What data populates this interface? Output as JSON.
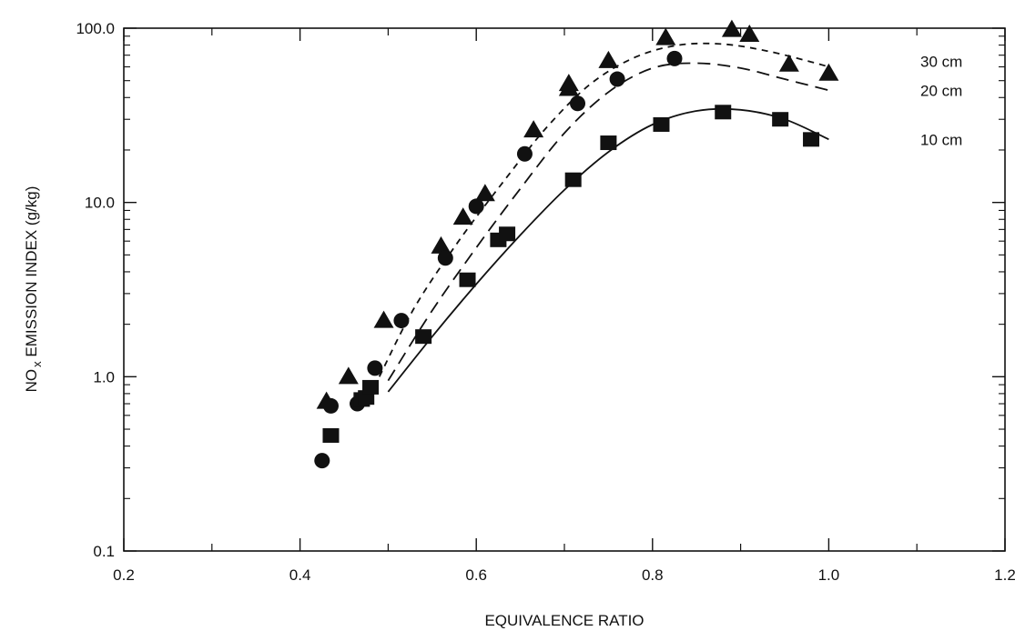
{
  "chart_data": {
    "type": "scatter",
    "xlabel": "EQUIVALENCE RATIO",
    "ylabel_prefix": "NO",
    "ylabel_sub": "x",
    "ylabel_suffix": " EMISSION INDEX (g/kg)",
    "xlim": [
      0.2,
      1.2
    ],
    "ylim": [
      0.1,
      100.0
    ],
    "yscale": "log",
    "xticks": [
      "0.2",
      "0.4",
      "0.6",
      "0.8",
      "1.0",
      "1.2"
    ],
    "yticks": [
      "0.1",
      "1.0",
      "10.0",
      "100.0"
    ],
    "grid": false,
    "series": [
      {
        "name": "30 cm",
        "marker": "triangle",
        "line_style": "dashed-short",
        "points": [
          [
            0.43,
            0.72
          ],
          [
            0.455,
            1.0
          ],
          [
            0.495,
            2.1
          ],
          [
            0.56,
            5.6
          ],
          [
            0.585,
            8.2
          ],
          [
            0.61,
            11.2
          ],
          [
            0.665,
            26
          ],
          [
            0.705,
            45
          ],
          [
            0.705,
            48
          ],
          [
            0.75,
            65
          ],
          [
            0.815,
            88
          ],
          [
            0.89,
            98
          ],
          [
            0.91,
            92
          ],
          [
            0.955,
            62
          ],
          [
            1.0,
            55
          ]
        ],
        "curve": [
          [
            0.49,
            1.0
          ],
          [
            0.53,
            2.5
          ],
          [
            0.58,
            6
          ],
          [
            0.63,
            13
          ],
          [
            0.68,
            27
          ],
          [
            0.73,
            48
          ],
          [
            0.78,
            68
          ],
          [
            0.83,
            80
          ],
          [
            0.88,
            81
          ],
          [
            0.93,
            74
          ],
          [
            0.98,
            64
          ],
          [
            1.0,
            60
          ]
        ]
      },
      {
        "name": "20 cm",
        "marker": "circle",
        "line_style": "dashed-long",
        "points": [
          [
            0.425,
            0.33
          ],
          [
            0.435,
            0.68
          ],
          [
            0.465,
            0.7
          ],
          [
            0.485,
            1.12
          ],
          [
            0.515,
            2.1
          ],
          [
            0.565,
            4.8
          ],
          [
            0.6,
            9.5
          ],
          [
            0.655,
            19
          ],
          [
            0.715,
            37
          ],
          [
            0.76,
            51
          ],
          [
            0.825,
            67
          ]
        ],
        "curve": [
          [
            0.5,
            0.95
          ],
          [
            0.55,
            2.4
          ],
          [
            0.6,
            5.5
          ],
          [
            0.65,
            12
          ],
          [
            0.7,
            25
          ],
          [
            0.75,
            43
          ],
          [
            0.8,
            59
          ],
          [
            0.85,
            63
          ],
          [
            0.9,
            59
          ],
          [
            0.95,
            51
          ],
          [
            1.0,
            44
          ]
        ]
      },
      {
        "name": "10 cm",
        "marker": "square",
        "line_style": "solid",
        "points": [
          [
            0.435,
            0.46
          ],
          [
            0.47,
            0.74
          ],
          [
            0.475,
            0.76
          ],
          [
            0.48,
            0.87
          ],
          [
            0.54,
            1.7
          ],
          [
            0.59,
            3.6
          ],
          [
            0.625,
            6.1
          ],
          [
            0.635,
            6.6
          ],
          [
            0.71,
            13.5
          ],
          [
            0.75,
            22
          ],
          [
            0.81,
            28
          ],
          [
            0.88,
            33
          ],
          [
            0.945,
            30
          ],
          [
            0.98,
            23
          ]
        ],
        "curve": [
          [
            0.5,
            0.82
          ],
          [
            0.55,
            1.7
          ],
          [
            0.6,
            3.4
          ],
          [
            0.65,
            6.5
          ],
          [
            0.7,
            11.8
          ],
          [
            0.75,
            19.5
          ],
          [
            0.8,
            28
          ],
          [
            0.85,
            33.5
          ],
          [
            0.9,
            34
          ],
          [
            0.95,
            30
          ],
          [
            1.0,
            23
          ]
        ]
      }
    ]
  }
}
